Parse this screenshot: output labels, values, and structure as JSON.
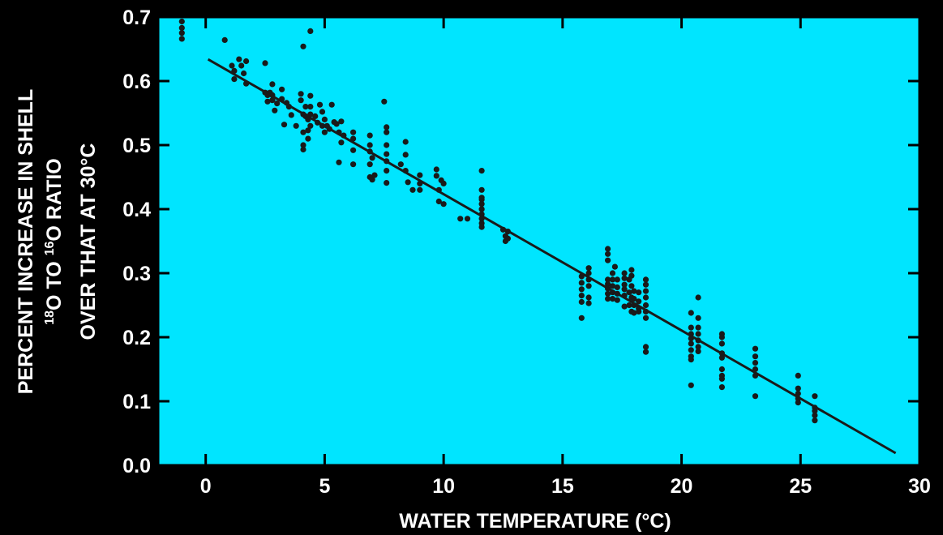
{
  "chart_data": {
    "type": "scatter",
    "title": "",
    "xlabel": "WATER TEMPERATURE (°C)",
    "ylabel_lines": [
      "PERCENT INCREASE IN SHELL",
      {
        "sup1": "18",
        "t1": "O TO ",
        "sup2": "16",
        "t2": "O RATIO"
      },
      "OVER THAT AT 30°C"
    ],
    "xlim": [
      -2,
      30
    ],
    "ylim": [
      0,
      0.7
    ],
    "xticks": [
      0,
      5,
      10,
      15,
      20,
      25,
      30
    ],
    "yticks": [
      0.0,
      0.1,
      0.2,
      0.3,
      0.4,
      0.5,
      0.6,
      0.7
    ],
    "grid": false,
    "colors": {
      "background": "#000000",
      "plot_area": "#00e5ff",
      "marks": "#1a1a1a",
      "text": "#ffffff"
    },
    "fit_line": {
      "x": [
        0.1,
        29.0
      ],
      "y": [
        0.634,
        0.019
      ]
    },
    "points": [
      [
        -1.0,
        0.693
      ],
      [
        -1.0,
        0.683
      ],
      [
        -1.0,
        0.675
      ],
      [
        -1.0,
        0.666
      ],
      [
        0.8,
        0.664
      ],
      [
        1.1,
        0.624
      ],
      [
        1.2,
        0.616
      ],
      [
        1.2,
        0.603
      ],
      [
        1.4,
        0.634
      ],
      [
        1.5,
        0.624
      ],
      [
        1.6,
        0.612
      ],
      [
        1.7,
        0.631
      ],
      [
        1.7,
        0.596
      ],
      [
        2.5,
        0.628
      ],
      [
        2.5,
        0.582
      ],
      [
        2.6,
        0.578
      ],
      [
        2.6,
        0.568
      ],
      [
        2.7,
        0.582
      ],
      [
        2.8,
        0.578
      ],
      [
        2.8,
        0.595
      ],
      [
        2.8,
        0.57
      ],
      [
        2.9,
        0.554
      ],
      [
        3.0,
        0.565
      ],
      [
        3.2,
        0.587
      ],
      [
        3.2,
        0.572
      ],
      [
        3.3,
        0.532
      ],
      [
        3.4,
        0.566
      ],
      [
        3.5,
        0.56
      ],
      [
        3.6,
        0.547
      ],
      [
        3.8,
        0.53
      ],
      [
        4.0,
        0.58
      ],
      [
        4.0,
        0.57
      ],
      [
        4.1,
        0.548
      ],
      [
        4.1,
        0.52
      ],
      [
        4.1,
        0.5
      ],
      [
        4.1,
        0.493
      ],
      [
        4.1,
        0.654
      ],
      [
        4.2,
        0.56
      ],
      [
        4.2,
        0.545
      ],
      [
        4.3,
        0.54
      ],
      [
        4.3,
        0.523
      ],
      [
        4.3,
        0.51
      ],
      [
        4.4,
        0.577
      ],
      [
        4.4,
        0.56
      ],
      [
        4.4,
        0.548
      ],
      [
        4.4,
        0.53
      ],
      [
        4.4,
        0.678
      ],
      [
        4.6,
        0.545
      ],
      [
        4.7,
        0.535
      ],
      [
        4.8,
        0.563
      ],
      [
        4.9,
        0.552
      ],
      [
        4.9,
        0.53
      ],
      [
        5.0,
        0.52
      ],
      [
        5.0,
        0.54
      ],
      [
        5.1,
        0.53
      ],
      [
        5.2,
        0.525
      ],
      [
        5.3,
        0.563
      ],
      [
        5.4,
        0.536
      ],
      [
        5.5,
        0.533
      ],
      [
        5.6,
        0.52
      ],
      [
        5.6,
        0.473
      ],
      [
        5.7,
        0.504
      ],
      [
        5.7,
        0.537
      ],
      [
        5.8,
        0.515
      ],
      [
        6.2,
        0.52
      ],
      [
        6.2,
        0.51
      ],
      [
        6.2,
        0.492
      ],
      [
        6.2,
        0.47
      ],
      [
        6.9,
        0.5
      ],
      [
        6.9,
        0.515
      ],
      [
        6.9,
        0.49
      ],
      [
        6.9,
        0.47
      ],
      [
        6.9,
        0.45
      ],
      [
        7.0,
        0.48
      ],
      [
        7.0,
        0.446
      ],
      [
        7.1,
        0.453
      ],
      [
        7.5,
        0.568
      ],
      [
        7.6,
        0.528
      ],
      [
        7.6,
        0.52
      ],
      [
        7.6,
        0.5
      ],
      [
        7.6,
        0.486
      ],
      [
        7.6,
        0.475
      ],
      [
        7.6,
        0.46
      ],
      [
        7.6,
        0.441
      ],
      [
        8.2,
        0.47
      ],
      [
        8.4,
        0.505
      ],
      [
        8.4,
        0.485
      ],
      [
        8.4,
        0.46
      ],
      [
        8.5,
        0.442
      ],
      [
        8.7,
        0.43
      ],
      [
        9.0,
        0.453
      ],
      [
        9.0,
        0.44
      ],
      [
        9.0,
        0.43
      ],
      [
        9.7,
        0.462
      ],
      [
        9.7,
        0.452
      ],
      [
        9.8,
        0.43
      ],
      [
        9.8,
        0.412
      ],
      [
        9.9,
        0.445
      ],
      [
        10.0,
        0.44
      ],
      [
        10.0,
        0.408
      ],
      [
        10.7,
        0.385
      ],
      [
        11.0,
        0.385
      ],
      [
        11.6,
        0.46
      ],
      [
        11.6,
        0.43
      ],
      [
        11.6,
        0.415
      ],
      [
        11.6,
        0.408
      ],
      [
        11.6,
        0.4
      ],
      [
        11.6,
        0.392
      ],
      [
        11.6,
        0.385
      ],
      [
        11.6,
        0.378
      ],
      [
        11.6,
        0.372
      ],
      [
        11.6,
        0.418
      ],
      [
        11.6,
        0.4
      ],
      [
        12.5,
        0.368
      ],
      [
        12.6,
        0.358
      ],
      [
        12.6,
        0.35
      ],
      [
        12.7,
        0.354
      ],
      [
        12.7,
        0.365
      ],
      [
        15.8,
        0.295
      ],
      [
        15.8,
        0.285
      ],
      [
        15.8,
        0.275
      ],
      [
        15.8,
        0.265
      ],
      [
        15.8,
        0.255
      ],
      [
        15.8,
        0.23
      ],
      [
        16.1,
        0.308
      ],
      [
        16.1,
        0.3
      ],
      [
        16.1,
        0.29
      ],
      [
        16.1,
        0.28
      ],
      [
        16.1,
        0.262
      ],
      [
        16.1,
        0.253
      ],
      [
        16.9,
        0.338
      ],
      [
        16.9,
        0.33
      ],
      [
        16.9,
        0.32
      ],
      [
        16.9,
        0.29
      ],
      [
        16.9,
        0.283
      ],
      [
        16.9,
        0.276
      ],
      [
        16.9,
        0.268
      ],
      [
        16.9,
        0.26
      ],
      [
        17.1,
        0.3
      ],
      [
        17.1,
        0.29
      ],
      [
        17.1,
        0.28
      ],
      [
        17.1,
        0.27
      ],
      [
        17.1,
        0.26
      ],
      [
        17.2,
        0.31
      ],
      [
        17.3,
        0.29
      ],
      [
        17.3,
        0.278
      ],
      [
        17.3,
        0.268
      ],
      [
        17.3,
        0.258
      ],
      [
        17.6,
        0.3
      ],
      [
        17.6,
        0.292
      ],
      [
        17.6,
        0.282
      ],
      [
        17.6,
        0.275
      ],
      [
        17.6,
        0.265
      ],
      [
        17.6,
        0.248
      ],
      [
        17.8,
        0.29
      ],
      [
        17.8,
        0.27
      ],
      [
        17.8,
        0.25
      ],
      [
        17.9,
        0.305
      ],
      [
        17.9,
        0.296
      ],
      [
        17.9,
        0.28
      ],
      [
        17.9,
        0.262
      ],
      [
        17.9,
        0.24
      ],
      [
        18.0,
        0.272
      ],
      [
        18.0,
        0.26
      ],
      [
        18.0,
        0.25
      ],
      [
        18.0,
        0.238
      ],
      [
        18.2,
        0.27
      ],
      [
        18.2,
        0.256
      ],
      [
        18.2,
        0.245
      ],
      [
        18.2,
        0.24
      ],
      [
        18.5,
        0.29
      ],
      [
        18.5,
        0.282
      ],
      [
        18.5,
        0.272
      ],
      [
        18.5,
        0.262
      ],
      [
        18.5,
        0.25
      ],
      [
        18.5,
        0.24
      ],
      [
        18.5,
        0.23
      ],
      [
        18.5,
        0.185
      ],
      [
        18.5,
        0.177
      ],
      [
        20.4,
        0.238
      ],
      [
        20.4,
        0.215
      ],
      [
        20.4,
        0.205
      ],
      [
        20.4,
        0.198
      ],
      [
        20.4,
        0.19
      ],
      [
        20.4,
        0.18
      ],
      [
        20.4,
        0.17
      ],
      [
        20.4,
        0.165
      ],
      [
        20.4,
        0.125
      ],
      [
        20.7,
        0.262
      ],
      [
        20.7,
        0.23
      ],
      [
        20.7,
        0.215
      ],
      [
        20.7,
        0.205
      ],
      [
        20.7,
        0.195
      ],
      [
        20.7,
        0.185
      ],
      [
        20.7,
        0.178
      ],
      [
        21.7,
        0.205
      ],
      [
        21.7,
        0.2
      ],
      [
        21.7,
        0.19
      ],
      [
        21.7,
        0.175
      ],
      [
        21.7,
        0.168
      ],
      [
        21.7,
        0.15
      ],
      [
        21.7,
        0.14
      ],
      [
        21.7,
        0.135
      ],
      [
        21.7,
        0.122
      ],
      [
        23.1,
        0.182
      ],
      [
        23.1,
        0.17
      ],
      [
        23.1,
        0.16
      ],
      [
        23.1,
        0.15
      ],
      [
        23.1,
        0.14
      ],
      [
        23.1,
        0.108
      ],
      [
        24.9,
        0.14
      ],
      [
        24.9,
        0.12
      ],
      [
        24.9,
        0.112
      ],
      [
        24.9,
        0.104
      ],
      [
        24.9,
        0.098
      ],
      [
        25.6,
        0.108
      ],
      [
        25.6,
        0.09
      ],
      [
        25.6,
        0.085
      ],
      [
        25.6,
        0.078
      ],
      [
        25.6,
        0.07
      ]
    ]
  }
}
